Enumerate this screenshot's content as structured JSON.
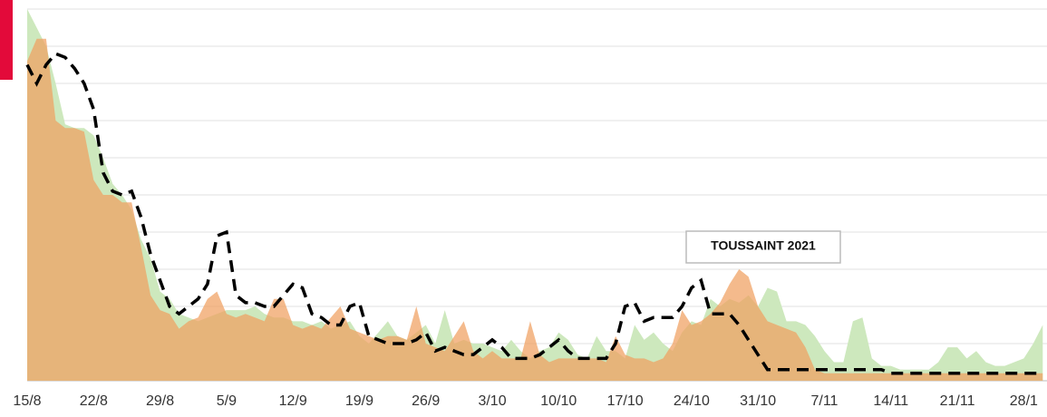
{
  "chart_data": {
    "type": "area-line",
    "annotation": "TOUSSAINT 2021",
    "categories": [
      "15/8",
      null,
      null,
      null,
      null,
      null,
      null,
      "22/8",
      null,
      null,
      null,
      null,
      null,
      null,
      "29/8",
      null,
      null,
      null,
      null,
      null,
      null,
      "5/9",
      null,
      null,
      null,
      null,
      null,
      null,
      "12/9",
      null,
      null,
      null,
      null,
      null,
      null,
      "19/9",
      null,
      null,
      null,
      null,
      null,
      null,
      "26/9",
      null,
      null,
      null,
      null,
      null,
      null,
      "3/10",
      null,
      null,
      null,
      null,
      null,
      null,
      "10/10",
      null,
      null,
      null,
      null,
      null,
      null,
      "17/10",
      null,
      null,
      null,
      null,
      null,
      null,
      "24/10",
      null,
      null,
      null,
      null,
      null,
      null,
      "31/10",
      null,
      null,
      null,
      null,
      null,
      null,
      "7/11",
      null,
      null,
      null,
      null,
      null,
      null,
      "14/11",
      null,
      null,
      null,
      null,
      null,
      null,
      "21/11",
      null,
      null,
      null,
      null,
      null,
      null,
      "28/1",
      null,
      null
    ],
    "series": [
      {
        "kind": "area",
        "color": "#cde8bd",
        "values": [
          10.0,
          9.5,
          9.0,
          8.0,
          6.9,
          6.8,
          6.8,
          6.6,
          6.0,
          5.3,
          5.0,
          4.6,
          3.8,
          3.3,
          2.4,
          2.2,
          1.8,
          1.7,
          1.6,
          1.7,
          1.8,
          1.9,
          1.9,
          1.9,
          2.0,
          1.8,
          1.7,
          1.7,
          1.6,
          1.6,
          1.5,
          1.6,
          1.4,
          1.5,
          1.6,
          1.2,
          1.0,
          1.3,
          1.6,
          1.2,
          1.1,
          1.3,
          1.5,
          1.0,
          1.9,
          1.0,
          1.1,
          1.0,
          1.0,
          0.9,
          0.8,
          1.1,
          0.8,
          0.6,
          0.8,
          0.9,
          1.3,
          1.1,
          0.7,
          0.6,
          1.2,
          0.8,
          0.8,
          0.6,
          1.5,
          1.1,
          1.3,
          1.0,
          0.8,
          1.3,
          1.6,
          1.5,
          2.2,
          2.0,
          2.2,
          2.1,
          2.3,
          2.0,
          2.5,
          2.4,
          1.6,
          1.6,
          1.5,
          1.2,
          0.8,
          0.5,
          0.5,
          1.6,
          1.7,
          0.6,
          0.4,
          0.4,
          0.3,
          0.3,
          0.3,
          0.3,
          0.5,
          0.9,
          0.9,
          0.6,
          0.8,
          0.5,
          0.4,
          0.4,
          0.5,
          0.6,
          1.0,
          1.5
        ]
      },
      {
        "kind": "area",
        "color": "#f0a060",
        "values": [
          8.6,
          9.2,
          9.2,
          7.0,
          6.8,
          6.8,
          6.7,
          5.4,
          5.0,
          5.0,
          4.8,
          4.8,
          3.6,
          2.3,
          1.9,
          1.8,
          1.4,
          1.6,
          1.7,
          2.2,
          2.4,
          1.8,
          1.7,
          1.8,
          1.7,
          1.6,
          2.2,
          2.2,
          1.5,
          1.4,
          1.5,
          1.4,
          1.7,
          2.0,
          1.4,
          1.3,
          1.2,
          1.1,
          1.2,
          1.2,
          1.1,
          2.0,
          1.0,
          0.9,
          0.8,
          1.2,
          1.6,
          0.8,
          0.6,
          0.8,
          0.6,
          0.6,
          0.6,
          1.6,
          0.7,
          0.5,
          0.6,
          0.6,
          0.6,
          0.6,
          0.6,
          0.5,
          1.2,
          0.7,
          0.6,
          0.6,
          0.5,
          0.6,
          1.0,
          1.9,
          1.5,
          1.6,
          1.8,
          2.1,
          2.6,
          3.0,
          2.8,
          2.0,
          1.6,
          1.5,
          1.4,
          1.3,
          0.9,
          0.3,
          0.2,
          0.2,
          0.2,
          0.2,
          0.2,
          0.2,
          0.2,
          0.2,
          0.2,
          0.2,
          0.2,
          0.2,
          0.2,
          0.2,
          0.2,
          0.2,
          0.2,
          0.2,
          0.2,
          0.2,
          0.2,
          0.2,
          0.2,
          0.2
        ]
      },
      {
        "kind": "dashed-line",
        "color": "#000000",
        "values": [
          8.5,
          8.0,
          8.5,
          8.8,
          8.7,
          8.4,
          8.0,
          7.3,
          5.6,
          5.1,
          5.0,
          5.1,
          4.4,
          3.4,
          2.7,
          2.0,
          1.8,
          2.0,
          2.2,
          2.6,
          3.9,
          4.0,
          2.3,
          2.1,
          2.1,
          2.0,
          2.0,
          2.3,
          2.6,
          2.5,
          1.8,
          1.7,
          1.5,
          1.5,
          2.0,
          2.1,
          1.2,
          1.1,
          1.0,
          1.0,
          1.0,
          1.1,
          1.3,
          0.8,
          0.9,
          0.8,
          0.7,
          0.7,
          0.9,
          1.1,
          0.9,
          0.6,
          0.6,
          0.6,
          0.7,
          0.9,
          1.1,
          0.8,
          0.6,
          0.6,
          0.6,
          0.6,
          1.0,
          2.0,
          2.1,
          1.6,
          1.7,
          1.7,
          1.7,
          2.0,
          2.5,
          2.7,
          1.8,
          1.8,
          1.8,
          1.5,
          1.1,
          0.7,
          0.3,
          0.3,
          0.3,
          0.3,
          0.3,
          0.3,
          0.3,
          0.3,
          0.3,
          0.3,
          0.3,
          0.3,
          0.3,
          0.2,
          0.2,
          0.2,
          0.2,
          0.2,
          0.2,
          0.2,
          0.2,
          0.2,
          0.2,
          0.2,
          0.2,
          0.2,
          0.2,
          0.2,
          0.2,
          0.2
        ]
      }
    ],
    "ylim": [
      0,
      10
    ],
    "yticks": [
      0,
      1,
      2,
      3,
      4,
      5,
      6,
      7,
      8,
      9,
      10
    ],
    "grid": true
  }
}
